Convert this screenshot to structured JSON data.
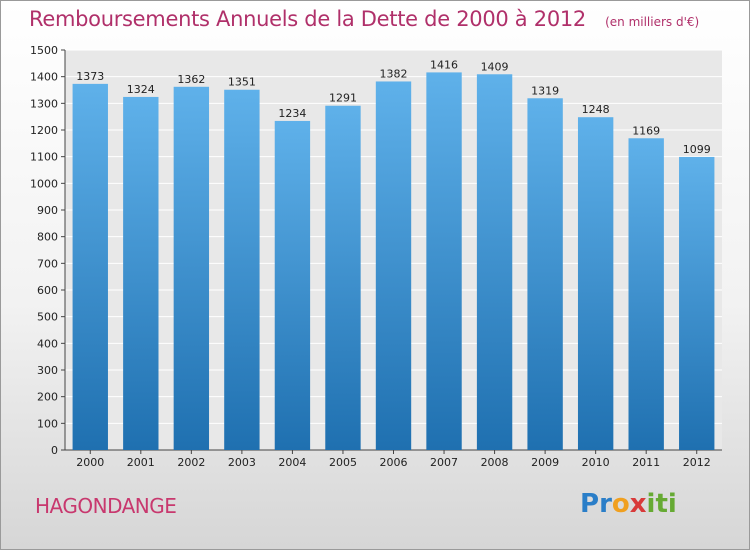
{
  "chart_data": {
    "type": "bar",
    "title": "Remboursements Annuels de la Dette de 2000 à 2012",
    "unit_label": "(en milliers d'€)",
    "xlabel": "",
    "ylabel": "",
    "categories": [
      "2000",
      "2001",
      "2002",
      "2003",
      "2004",
      "2005",
      "2006",
      "2007",
      "2008",
      "2009",
      "2010",
      "2011",
      "2012"
    ],
    "values": [
      1373,
      1324,
      1362,
      1351,
      1234,
      1291,
      1382,
      1416,
      1409,
      1319,
      1248,
      1169,
      1099
    ],
    "ylim": [
      0,
      1500
    ],
    "yticks": [
      0,
      100,
      200,
      300,
      400,
      500,
      600,
      700,
      800,
      900,
      1000,
      1100,
      1200,
      1300,
      1400,
      1500
    ],
    "grid": true,
    "legend": "none"
  },
  "footer": {
    "city": "HAGONDANGE",
    "brand": "Proxiti",
    "brand_letters": [
      "P",
      "r",
      "o",
      "x",
      "i",
      "t",
      "i"
    ]
  },
  "colors": {
    "title": "#b0306a",
    "bar_top": "#5fb1ea",
    "bar_bottom": "#1f70b0",
    "grid": "#ffffff",
    "plot_bg": "#e8e8e8",
    "brand": [
      "#2a7ec8",
      "#2a7ec8",
      "#f0a020",
      "#d83a3a",
      "#66aa33",
      "#66aa33",
      "#66aa33"
    ]
  }
}
